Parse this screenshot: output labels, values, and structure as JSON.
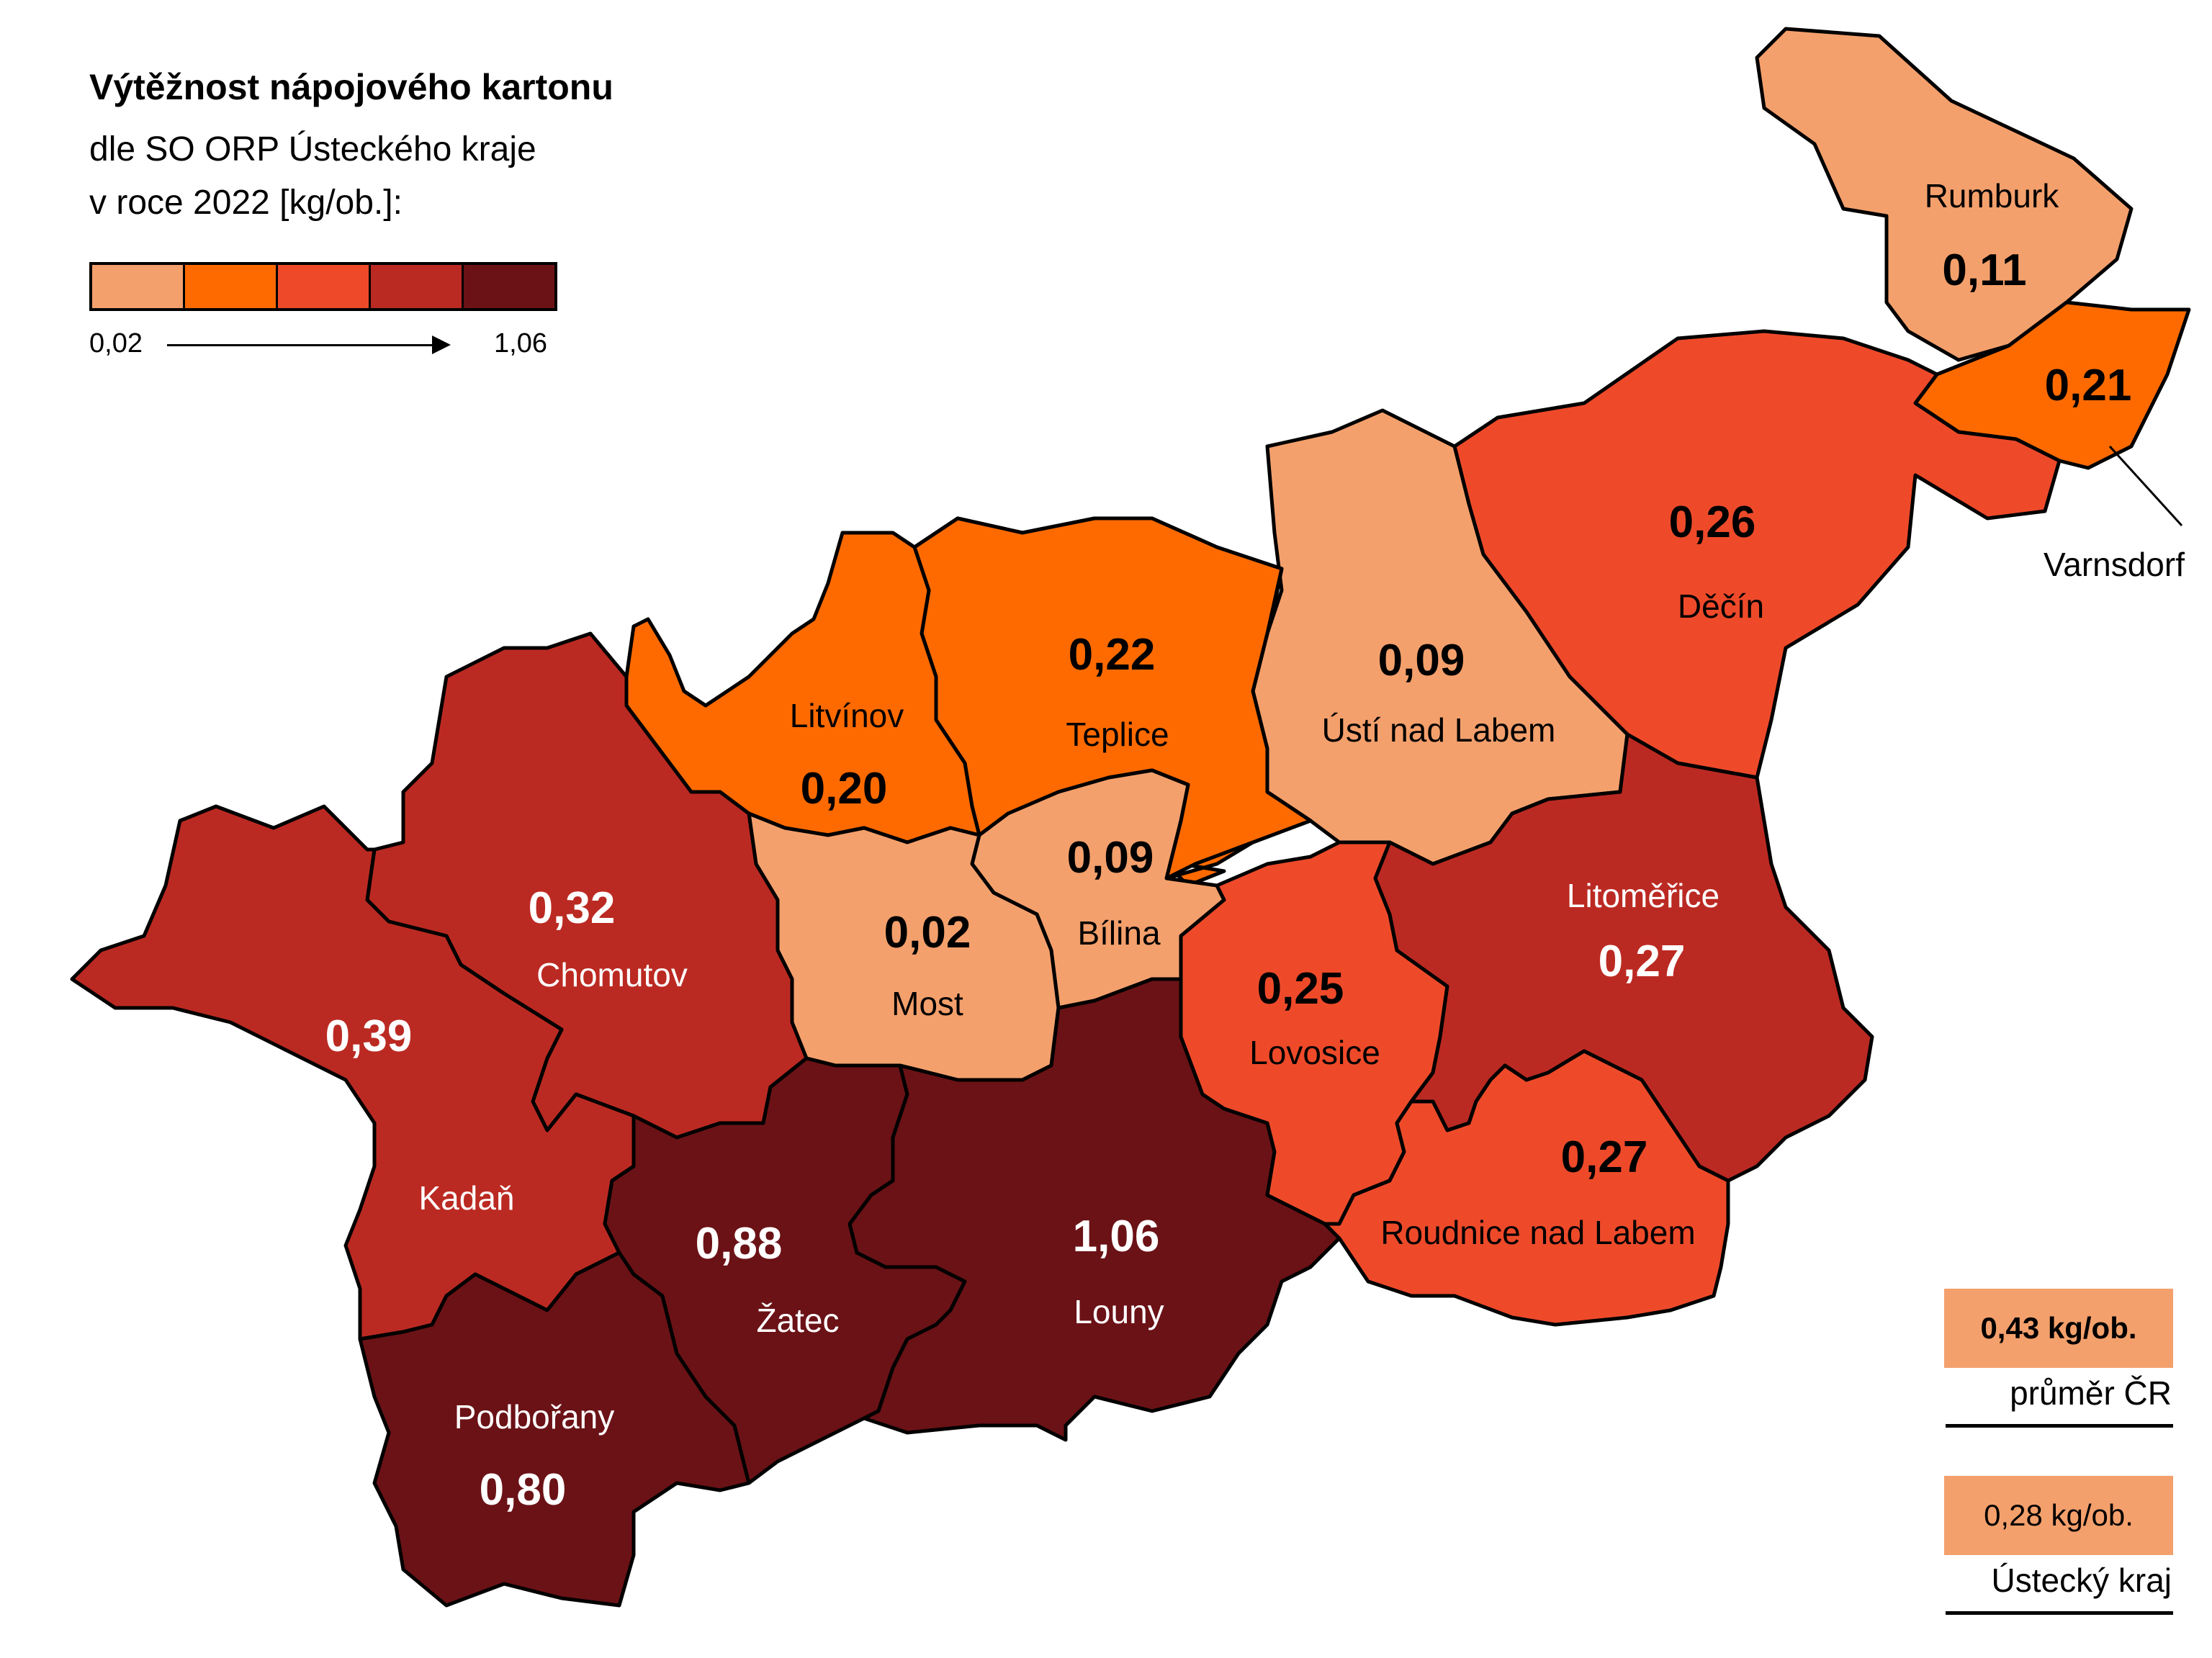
{
  "title": "Výtěžnost nápojového kartonu",
  "subtitle_line1": "dle SO ORP Ústeckého kraje",
  "subtitle_line2": "v roce 2022 [kg/ob.]:",
  "legend": {
    "min": "0,02",
    "max": "1,06",
    "colors": [
      "#F4A06C",
      "#FF6A00",
      "#EE4A2A",
      "#BB2A22",
      "#6B1216"
    ]
  },
  "averages": {
    "cr_value": "0,43 kg/ob.",
    "cr_label": "průměr ČR",
    "kraj_value": "0,28 kg/ob.",
    "kraj_label": "Ústecký kraj"
  },
  "regions": [
    {
      "id": "rumburk",
      "name": "Rumburk",
      "value": "0,11",
      "color": "#F4A06C"
    },
    {
      "id": "varnsdorf",
      "name": "Varnsdorf",
      "value": "0,21",
      "color": "#FF6A00"
    },
    {
      "id": "decin",
      "name": "Děčín",
      "value": "0,26",
      "color": "#EE4A2A"
    },
    {
      "id": "usti",
      "name": "Ústí nad Labem",
      "value": "0,09",
      "color": "#F4A06C"
    },
    {
      "id": "teplice",
      "name": "Teplice",
      "value": "0,22",
      "color": "#FF6A00"
    },
    {
      "id": "litvinov",
      "name": "Litvínov",
      "value": "0,20",
      "color": "#FF6A00"
    },
    {
      "id": "bilina",
      "name": "Bílina",
      "value": "0,09",
      "color": "#F4A06C"
    },
    {
      "id": "most",
      "name": "Most",
      "value": "0,02",
      "color": "#F4A06C"
    },
    {
      "id": "chomutov",
      "name": "Chomutov",
      "value": "0,32",
      "color": "#BB2A22"
    },
    {
      "id": "kadan",
      "name": "Kadaň",
      "value": "0,39",
      "color": "#BB2A22"
    },
    {
      "id": "zatec",
      "name": "Žatec",
      "value": "0,88",
      "color": "#6B1216"
    },
    {
      "id": "louny",
      "name": "Louny",
      "value": "1,06",
      "color": "#6B1216"
    },
    {
      "id": "podborany",
      "name": "Podbořany",
      "value": "0,80",
      "color": "#6B1216"
    },
    {
      "id": "lovosice",
      "name": "Lovosice",
      "value": "0,25",
      "color": "#EE4A2A"
    },
    {
      "id": "litomerice",
      "name": "Litoměřice",
      "value": "0,27",
      "color": "#BB2A22"
    },
    {
      "id": "roudnice",
      "name": "Roudnice nad Labem",
      "value": "0,27",
      "color": "#EE4A2A"
    }
  ]
}
